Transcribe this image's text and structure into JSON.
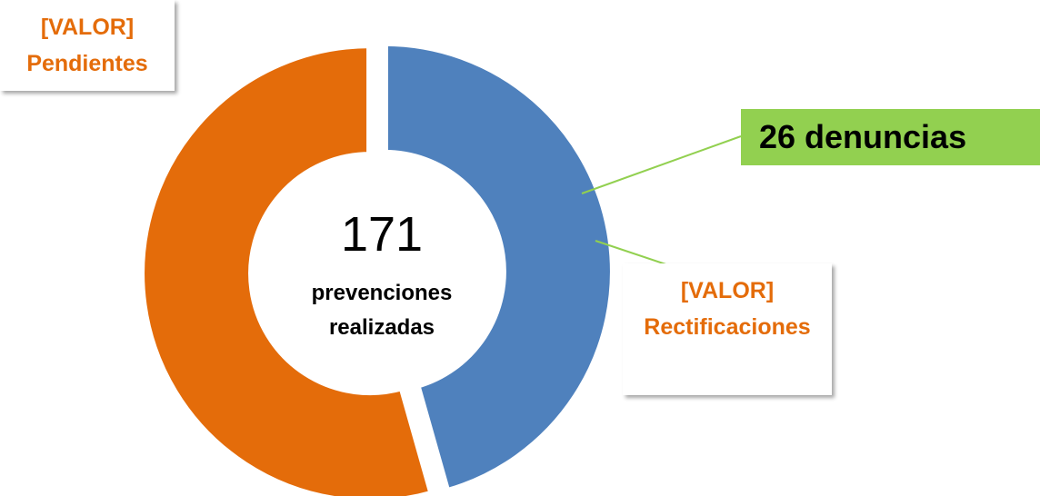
{
  "chart_data": {
    "type": "donut",
    "categories": [
      "Rectificaciones",
      "Pendientes"
    ],
    "values": [
      78,
      93
    ],
    "value_labels": [
      "[VALOR]",
      "[VALOR]"
    ],
    "colors": [
      "#4f81bd",
      "#e46c0a"
    ],
    "center_value": "171",
    "center_text": [
      "prevenciones",
      "realizadas"
    ],
    "annotation": "26 denuncias"
  }
}
